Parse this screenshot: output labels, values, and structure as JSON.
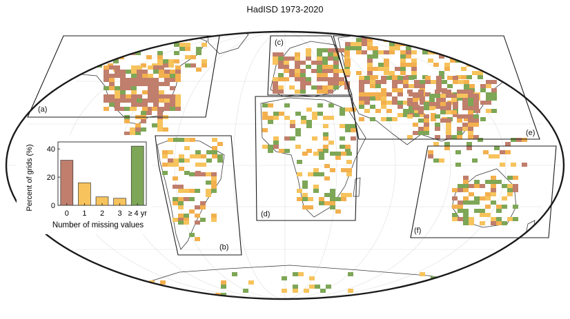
{
  "title": "HadISD 1973-2020",
  "colors": {
    "zero": "#c07e6c",
    "one": "#f6c35c",
    "two_three": "#f3b04e",
    "four_plus": "#7da656",
    "grid": "#dadada",
    "coast": "#3a3a3a",
    "frame": "#1a1a1a"
  },
  "regions": [
    {
      "id": "a",
      "label": "(a)"
    },
    {
      "id": "b",
      "label": "(b)"
    },
    {
      "id": "c",
      "label": "(c)"
    },
    {
      "id": "d",
      "label": "(d)"
    },
    {
      "id": "e",
      "label": "(e)"
    },
    {
      "id": "f",
      "label": "(f)"
    }
  ],
  "chart_data": {
    "type": "bar",
    "title": "",
    "xlabel": "Number of missing values",
    "ylabel": "Percent of grids (%)",
    "categories": [
      "0",
      "1",
      "2",
      "3",
      "≥ 4 yr"
    ],
    "values": [
      32,
      16,
      6,
      5,
      42
    ],
    "bar_colors": [
      "#c07e6c",
      "#f6c35c",
      "#f6c35c",
      "#f6c35c",
      "#7da656"
    ],
    "ylim": [
      0,
      45
    ],
    "yticks": [
      0,
      20,
      40
    ]
  }
}
